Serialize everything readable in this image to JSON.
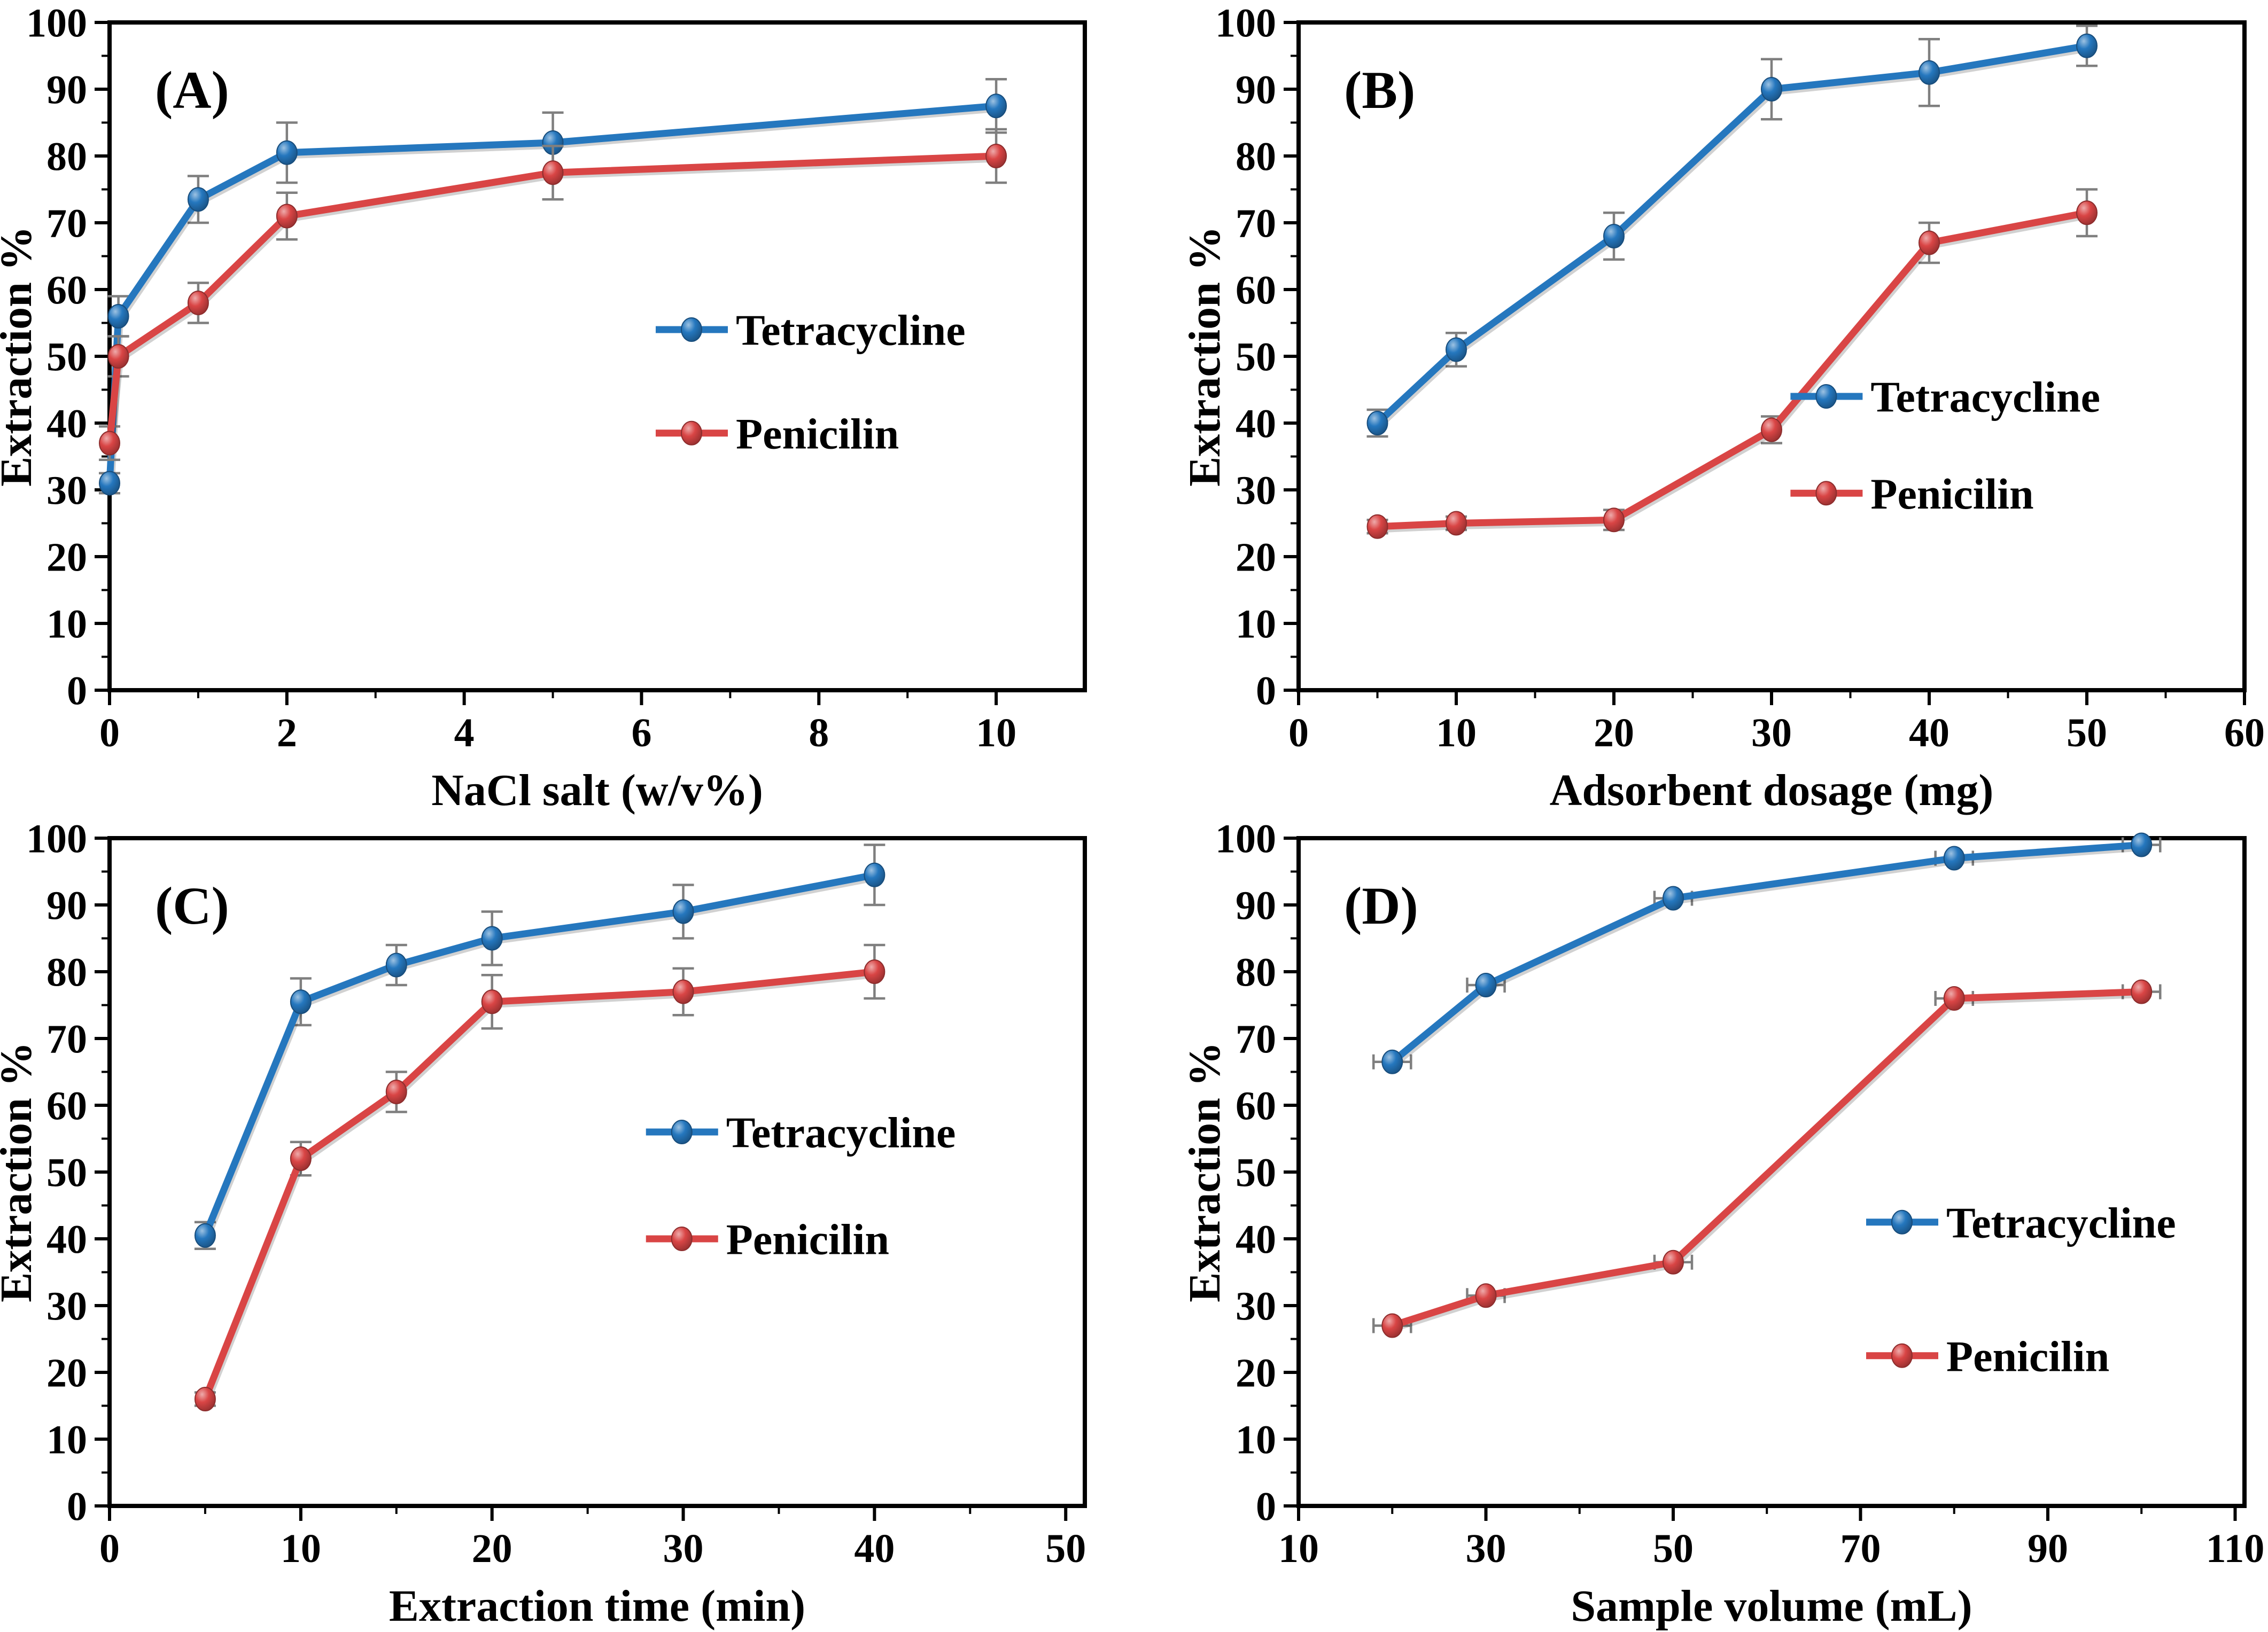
{
  "figure": {
    "description": "Four-panel line chart figure of extraction efficiency optimization",
    "background": "#ffffff",
    "error_bar_color": "#7f7f7f",
    "axis_color": "#000000"
  },
  "chart_data": [
    {
      "type": "line",
      "panel_label": "(A)",
      "xlabel": "NaCl salt (w/v%)",
      "ylabel": "Extraction %",
      "xlim": [
        0,
        11
      ],
      "ylim": [
        0,
        100
      ],
      "xticks": [
        0,
        2,
        4,
        6,
        8,
        10
      ],
      "yticks": [
        0,
        10,
        20,
        30,
        40,
        50,
        60,
        70,
        80,
        90,
        100
      ],
      "grid": false,
      "err_dir": "y",
      "x": [
        0,
        0.1,
        1,
        2,
        5,
        10
      ],
      "series": [
        {
          "name": "Tetracycline",
          "color": "#2577BE",
          "values": [
            31,
            56,
            73.5,
            80.5,
            82,
            87.5
          ],
          "err": [
            1.5,
            3,
            3.5,
            4.5,
            4.5,
            4
          ]
        },
        {
          "name": "Penicilin",
          "color": "#D94545",
          "values": [
            37,
            50,
            58,
            71,
            77.5,
            80
          ],
          "err": [
            2.5,
            3,
            3,
            3.5,
            4,
            4
          ]
        }
      ],
      "legend_pos": {
        "x": 0.56,
        "y1": 0.46,
        "y2": 0.615
      }
    },
    {
      "type": "line",
      "panel_label": "(B)",
      "xlabel": "Adsorbent dosage (mg)",
      "ylabel": "Extraction %",
      "xlim": [
        0,
        60
      ],
      "ylim": [
        0,
        100
      ],
      "xticks": [
        0,
        10,
        20,
        30,
        40,
        50,
        60
      ],
      "yticks": [
        0,
        10,
        20,
        30,
        40,
        50,
        60,
        70,
        80,
        90,
        100
      ],
      "grid": false,
      "err_dir": "y",
      "x": [
        5,
        10,
        20,
        30,
        40,
        50
      ],
      "series": [
        {
          "name": "Tetracycline",
          "color": "#2577BE",
          "values": [
            40,
            51,
            68,
            90,
            92.5,
            96.5
          ],
          "err": [
            2,
            2.5,
            3.5,
            4.5,
            5,
            3
          ]
        },
        {
          "name": "Penicilin",
          "color": "#D94545",
          "values": [
            24.5,
            25,
            25.5,
            39,
            67,
            71.5
          ],
          "err": [
            1,
            1,
            1.5,
            2,
            3,
            3.5
          ]
        }
      ],
      "legend_pos": {
        "x": 0.52,
        "y1": 0.56,
        "y2": 0.705
      }
    },
    {
      "type": "line",
      "panel_label": "(C)",
      "xlabel": "Extraction time (min)",
      "ylabel": "Extraction %",
      "xlim": [
        0,
        51
      ],
      "ylim": [
        0,
        100
      ],
      "xticks": [
        0,
        10,
        20,
        30,
        40,
        50
      ],
      "yticks": [
        0,
        10,
        20,
        30,
        40,
        50,
        60,
        70,
        80,
        90,
        100
      ],
      "grid": false,
      "err_dir": "y",
      "x": [
        5,
        10,
        15,
        20,
        30,
        40
      ],
      "series": [
        {
          "name": "Tetracycline",
          "color": "#2577BE",
          "values": [
            40.5,
            75.5,
            81,
            85,
            89,
            94.5
          ],
          "err": [
            2,
            3.5,
            3,
            4,
            4,
            4.5
          ]
        },
        {
          "name": "Penicilin",
          "color": "#D94545",
          "values": [
            16,
            52,
            62,
            75.5,
            77,
            80
          ],
          "err": [
            1,
            2.5,
            3,
            4,
            3.5,
            4
          ]
        }
      ],
      "legend_pos": {
        "x": 0.55,
        "y1": 0.44,
        "y2": 0.6
      }
    },
    {
      "type": "line",
      "panel_label": "(D)",
      "xlabel": "Sample volume (mL)",
      "ylabel": "Extraction %",
      "xlim": [
        10,
        111
      ],
      "ylim": [
        0,
        100
      ],
      "xticks": [
        10,
        30,
        50,
        70,
        90,
        110
      ],
      "yticks": [
        0,
        10,
        20,
        30,
        40,
        50,
        60,
        70,
        80,
        90,
        100
      ],
      "grid": false,
      "err_dir": "x",
      "x": [
        20,
        30,
        50,
        80,
        100
      ],
      "series": [
        {
          "name": "Tetracycline",
          "color": "#2577BE",
          "values": [
            66.5,
            78,
            91,
            97,
            99
          ],
          "err": [
            2,
            2,
            2,
            2,
            2
          ]
        },
        {
          "name": "Penicilin",
          "color": "#D94545",
          "values": [
            27,
            31.5,
            36.5,
            76,
            77
          ],
          "err": [
            2,
            2,
            2,
            2,
            2
          ]
        }
      ],
      "legend_pos": {
        "x": 0.6,
        "y1": 0.575,
        "y2": 0.775
      }
    }
  ]
}
